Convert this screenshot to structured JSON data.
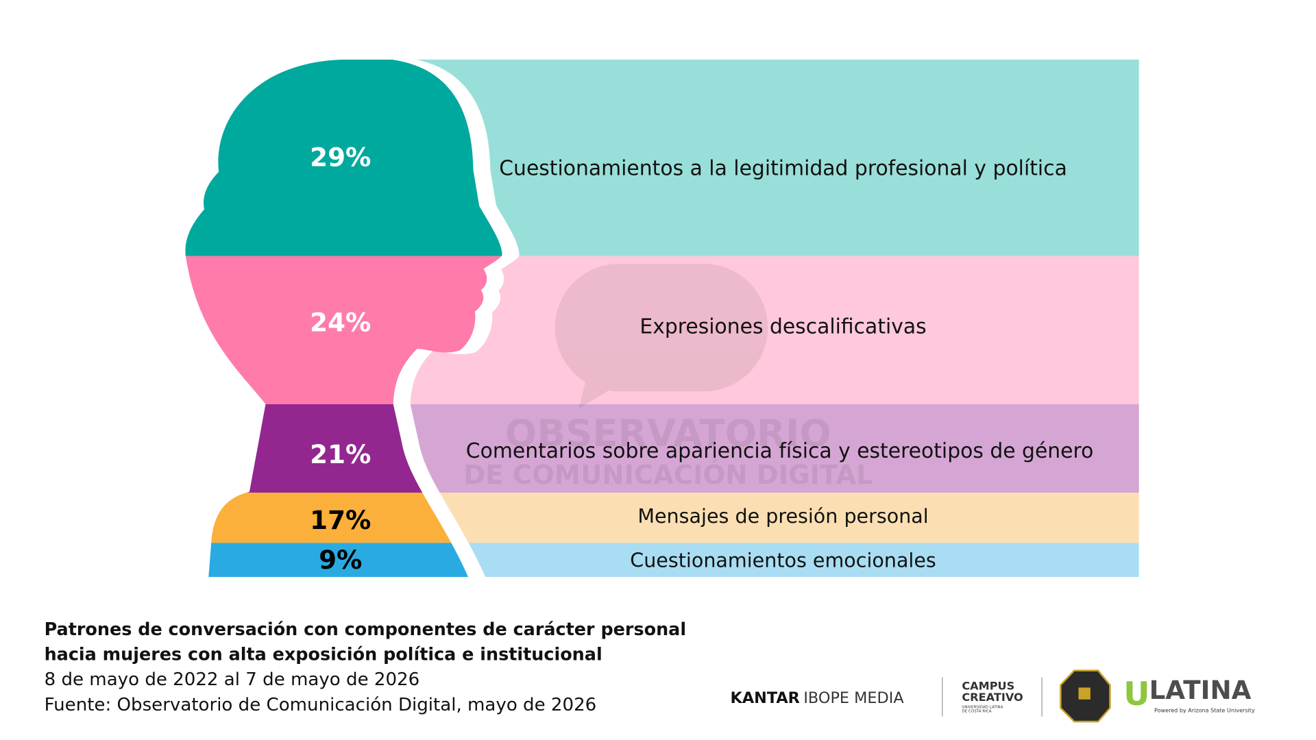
{
  "chart_data": {
    "type": "silhouette-bands",
    "categories": [
      "Cuestionamientos a la legitimidad profesional y política",
      "Expresiones descalificativas",
      "Comentarios sobre apariencia física y estereotipos de género",
      "Mensajes de presión personal",
      "Cuestionamientos emocionales"
    ],
    "values": [
      29,
      24,
      21,
      17,
      9
    ],
    "value_labels": [
      "29%",
      "24%",
      "21%",
      "17%",
      "9%"
    ],
    "colors": [
      "#00a99d",
      "#ff7bac",
      "#93278f",
      "#fbb03b",
      "#29abe2"
    ],
    "band_colors": [
      "#99dfd9",
      "#ffc8dc",
      "#d5a6d4",
      "#fbdfb2",
      "#a9ddf3"
    ],
    "value_label_colors": [
      "#ffffff",
      "#ffffff",
      "#ffffff",
      "#000000",
      "#000000"
    ],
    "watermark": [
      "OBSERVATORIO",
      "DE COMUNICACIÓN DIGITAL"
    ],
    "title": [
      "Patrones de conversación con componentes de carácter personal",
      "hacia mujeres con alta exposición política e institucional"
    ],
    "subtitle": "8 de mayo de 2022 al 7 de mayo de 2026",
    "source": "Fuente: Observatorio de Comunicación Digital, mayo de 2026"
  },
  "logos": {
    "kantar": [
      "KANTAR",
      "IBOPE MEDIA"
    ],
    "campus": [
      "CAMPUS",
      "CREATIVO",
      "UNIVERSIDAD LATINA",
      "DE COSTA RICA"
    ],
    "ulatina": [
      "U",
      "LATINA",
      "Powered by Arizona State University"
    ]
  }
}
